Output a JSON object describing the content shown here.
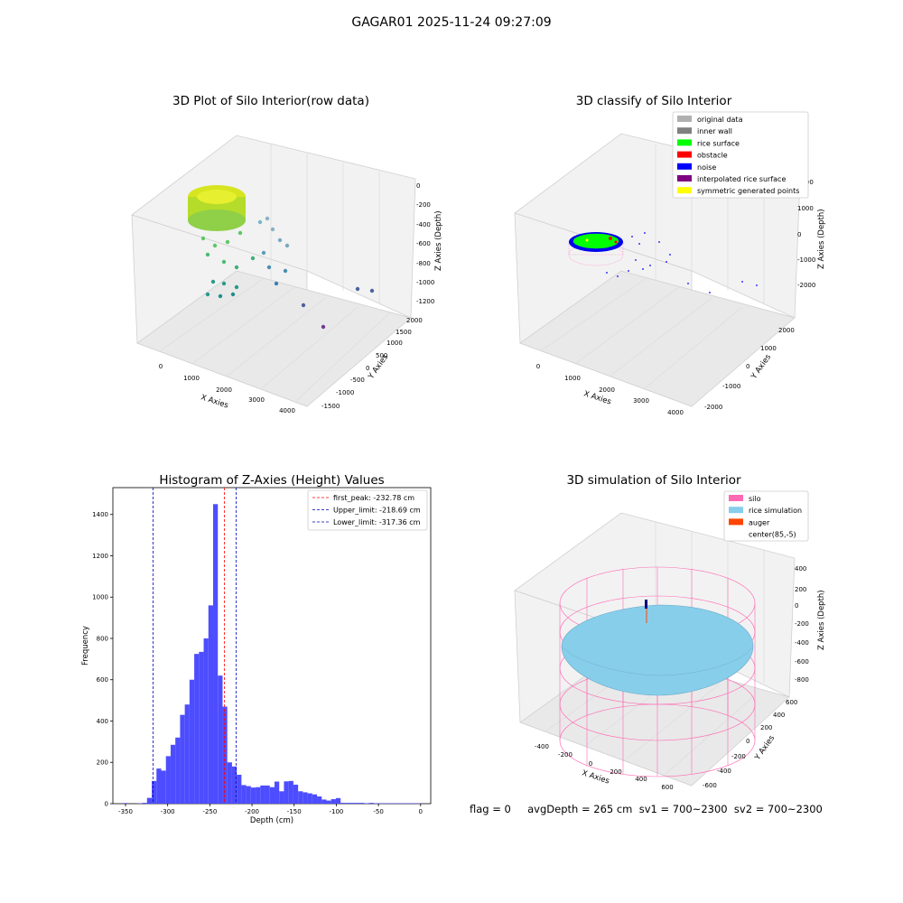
{
  "figure": {
    "title": "GAGAR01 2025-11-24 09:27:09"
  },
  "panels": {
    "raw": {
      "title": "3D Plot of Silo Interior(row data)",
      "xlabel": "X Axies",
      "ylabel": "Y Axies",
      "zlabel": "Z Axies (Depth)",
      "xticks": [
        "0",
        "1000",
        "2000",
        "3000",
        "4000"
      ],
      "yticks": [
        "-1500",
        "-1000",
        "-500",
        "0",
        "500",
        "1000",
        "1500",
        "2000"
      ],
      "zticks": [
        "0",
        "-200",
        "-400",
        "-600",
        "-800",
        "-1000",
        "-1200"
      ]
    },
    "classify": {
      "title": "3D classify of Silo Interior",
      "xlabel": "X Axies",
      "ylabel": "Y Axies",
      "zlabel": "Z Axies (Depth)",
      "xticks": [
        "0",
        "1000",
        "2000",
        "3000",
        "4000"
      ],
      "yticks": [
        "-2000",
        "-1000",
        "0",
        "1000",
        "2000"
      ],
      "zticks": [
        "2000",
        "1000",
        "0",
        "-1000",
        "-2000"
      ],
      "legend": [
        {
          "label": "original data",
          "color": "#b0b0b0"
        },
        {
          "label": "inner wall",
          "color": "#808080"
        },
        {
          "label": "rice surface",
          "color": "#00ff00"
        },
        {
          "label": "obstacle",
          "color": "#ff0000"
        },
        {
          "label": "noise",
          "color": "#0000ff"
        },
        {
          "label": "interpolated rice surface",
          "color": "#800080"
        },
        {
          "label": "symmetric generated points",
          "color": "#ffff00"
        }
      ]
    },
    "simulation": {
      "title": "3D simulation of Silo Interior",
      "xlabel": "X Axies",
      "ylabel": "Y Axies",
      "zlabel": "Z Axies (Depth)",
      "xticks": [
        "-400",
        "-200",
        "0",
        "200",
        "400",
        "600"
      ],
      "yticks": [
        "-600",
        "-400",
        "-200",
        "0",
        "200",
        "400",
        "600"
      ],
      "zticks": [
        "400",
        "200",
        "0",
        "-200",
        "-400",
        "-600",
        "-800"
      ],
      "legend": [
        {
          "label": "silo",
          "color": "#ff69b4"
        },
        {
          "label": "rice simulation",
          "color": "#87ceeb"
        },
        {
          "label": "auger",
          "color": "#ff4500"
        },
        {
          "label": "center(85,-5)",
          "color": ""
        }
      ]
    }
  },
  "status": {
    "text": "flag = 0     avgDepth = 265 cm  sv1 = 700~2300  sv2 = 700~2300"
  },
  "chart_data": {
    "type": "bar",
    "title": "Histogram of Z-Axies (Height) Values",
    "xlabel": "Depth (cm)",
    "ylabel": "Frequency",
    "xlim": [
      -365,
      12
    ],
    "ylim": [
      0,
      1530
    ],
    "xticks": [
      -350,
      -300,
      -250,
      -200,
      -150,
      -100,
      -50,
      0
    ],
    "yticks": [
      0,
      200,
      400,
      600,
      800,
      1000,
      1200,
      1400
    ],
    "bin_width": 5.6,
    "bins_start": [
      -352.5,
      -346.9,
      -341.3,
      -335.7,
      -330.1,
      -324.5,
      -318.9,
      -313.3,
      -307.7,
      -302.1,
      -296.5,
      -290.9,
      -285.3,
      -279.7,
      -274.1,
      -268.5,
      -262.9,
      -257.3,
      -251.7,
      -246.1,
      -240.5,
      -234.9,
      -229.3,
      -223.7,
      -218.1,
      -212.5,
      -206.9,
      -201.3,
      -195.7,
      -190.1,
      -184.5,
      -178.9,
      -173.3,
      -167.7,
      -162.1,
      -156.5,
      -150.9,
      -145.3,
      -139.7,
      -134.1,
      -128.5,
      -122.9,
      -117.3,
      -111.7,
      -106.1,
      -100.5,
      -94.9,
      -89.3,
      -83.7,
      -78.1,
      -72.5,
      -66.9,
      -61.3,
      -55.7,
      -50.1,
      -44.5,
      -38.9,
      -33.3,
      -27.7,
      -22.1,
      -16.5,
      -10.9,
      -5.3
    ],
    "values": [
      3,
      0,
      0,
      2,
      4,
      28,
      110,
      170,
      160,
      230,
      285,
      320,
      430,
      480,
      600,
      725,
      735,
      800,
      960,
      1450,
      620,
      470,
      200,
      180,
      140,
      90,
      85,
      78,
      80,
      88,
      88,
      80,
      107,
      60,
      108,
      110,
      92,
      60,
      55,
      50,
      45,
      35,
      20,
      15,
      22,
      27,
      4,
      4,
      4,
      4,
      4,
      2,
      4,
      2,
      2,
      2,
      2,
      2,
      2,
      2,
      2,
      2,
      2
    ],
    "bar_color": "#4d4dff",
    "lines": [
      {
        "label": "first_peak: -232.78 cm",
        "x": -232.78,
        "color": "#ff0000"
      },
      {
        "label": "Upper_limit: -218.69 cm",
        "x": -218.69,
        "color": "#0000bb"
      },
      {
        "label": "Lower_limit: -317.36 cm",
        "x": -317.36,
        "color": "#0000bb"
      }
    ],
    "legend_position": "top-right"
  }
}
